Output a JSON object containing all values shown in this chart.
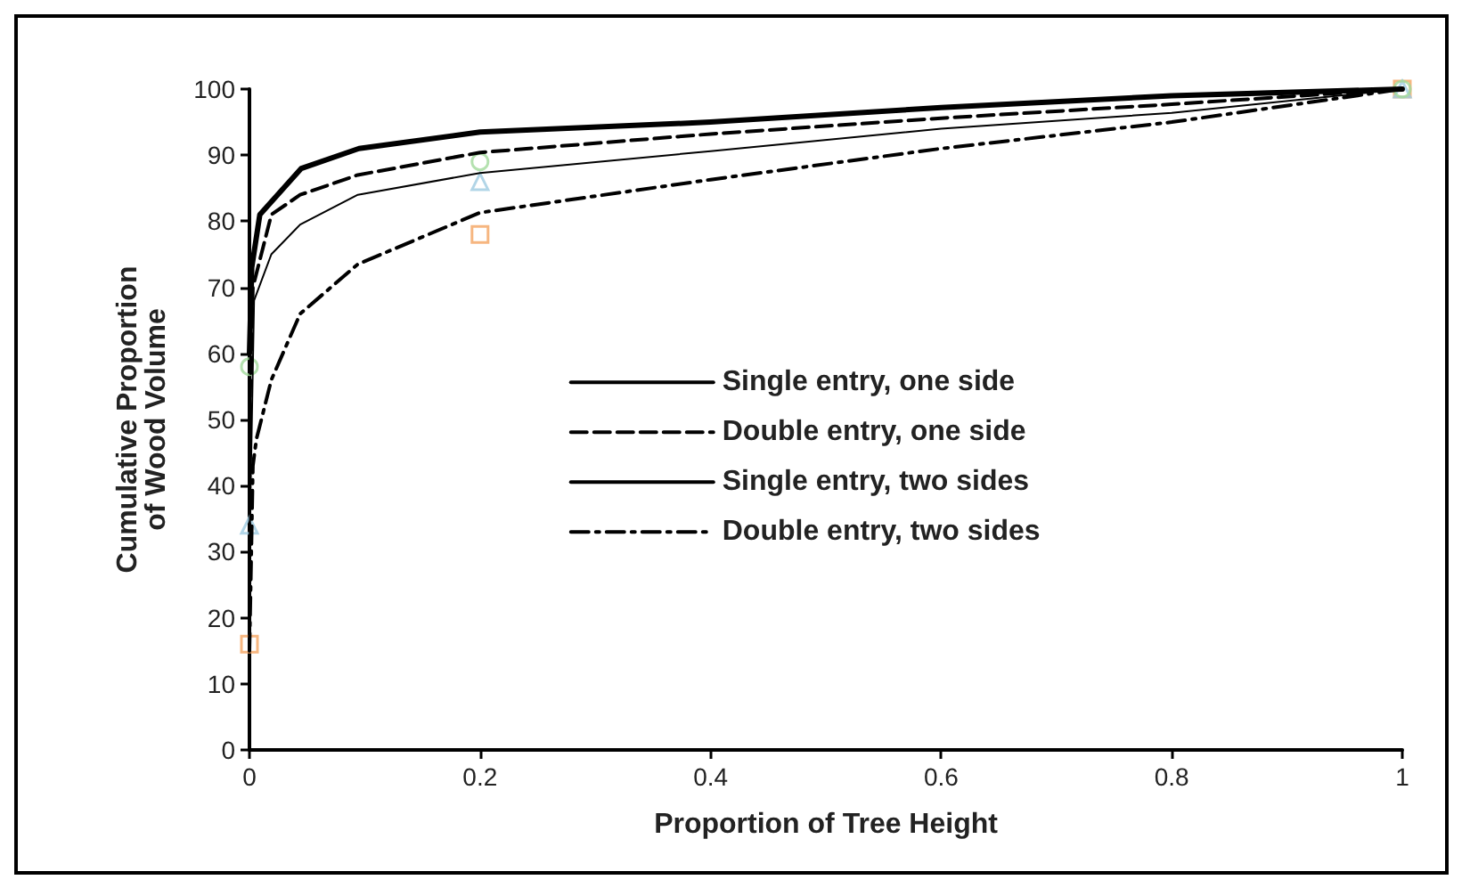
{
  "chart_data": {
    "type": "line",
    "xlabel": "Proportion of Tree Height",
    "ylabel": "Cumulative Proportion\nof Wood Volume",
    "xlim": [
      0,
      1
    ],
    "xticks": [
      0,
      0.2,
      0.4,
      0.6,
      0.8,
      1
    ],
    "ylim": [
      0,
      100
    ],
    "yticks": [
      0,
      10,
      20,
      30,
      40,
      50,
      60,
      70,
      80,
      90,
      100
    ],
    "grid": false,
    "legend": "right",
    "marker": "none",
    "series": [
      {
        "name": "Single entry, one side",
        "color": "#000000",
        "line_style": "solid",
        "x": [
          0,
          0.002,
          0.009,
          0.045,
          0.095,
          0.2,
          0.4,
          0.6,
          0.8,
          1
        ],
        "values": [
          60,
          73,
          81,
          88,
          91,
          93.5,
          95,
          97.2,
          99,
          100
        ]
      },
      {
        "name": "Double entry, one side",
        "color": "#000000",
        "line_style": "dashed",
        "x": [
          0,
          0.003,
          0.019,
          0.044,
          0.094,
          0.2,
          0.4,
          0.6,
          0.8,
          1
        ],
        "values": [
          50,
          70,
          81,
          84,
          87,
          90.4,
          93.2,
          95.6,
          97.7,
          100
        ]
      },
      {
        "name": "Single entry, two sides",
        "color": "#000000",
        "line_style": "solid",
        "x": [
          0,
          0.004,
          0.019,
          0.044,
          0.094,
          0.2,
          0.4,
          0.6,
          0.8,
          1
        ],
        "values": [
          30,
          68,
          75,
          79.5,
          84,
          87.3,
          90.6,
          94,
          96.4,
          100
        ]
      },
      {
        "name": "Double entry, two sides",
        "color": "#000000",
        "line_style": "dashdot",
        "x": [
          0,
          0.003,
          0.006,
          0.019,
          0.044,
          0.094,
          0.2,
          0.4,
          0.6,
          0.8,
          1
        ],
        "values": [
          15,
          43,
          47,
          56,
          66,
          73.5,
          81.3,
          86.3,
          91,
          95,
          100
        ]
      },
      {
        "type": "scatter",
        "marker": "square",
        "color": "#f4a460",
        "x": [
          0,
          0.2,
          1
        ],
        "values": [
          16,
          78,
          100
        ]
      },
      {
        "type": "scatter",
        "marker": "triangle",
        "color": "#9ecae1",
        "x": [
          0,
          0.2,
          1
        ],
        "values": [
          34,
          86,
          100
        ]
      },
      {
        "type": "scatter",
        "marker": "circle",
        "color": "#a1d99b",
        "x": [
          0,
          0.2,
          1
        ],
        "values": [
          58,
          89,
          100
        ]
      }
    ]
  }
}
